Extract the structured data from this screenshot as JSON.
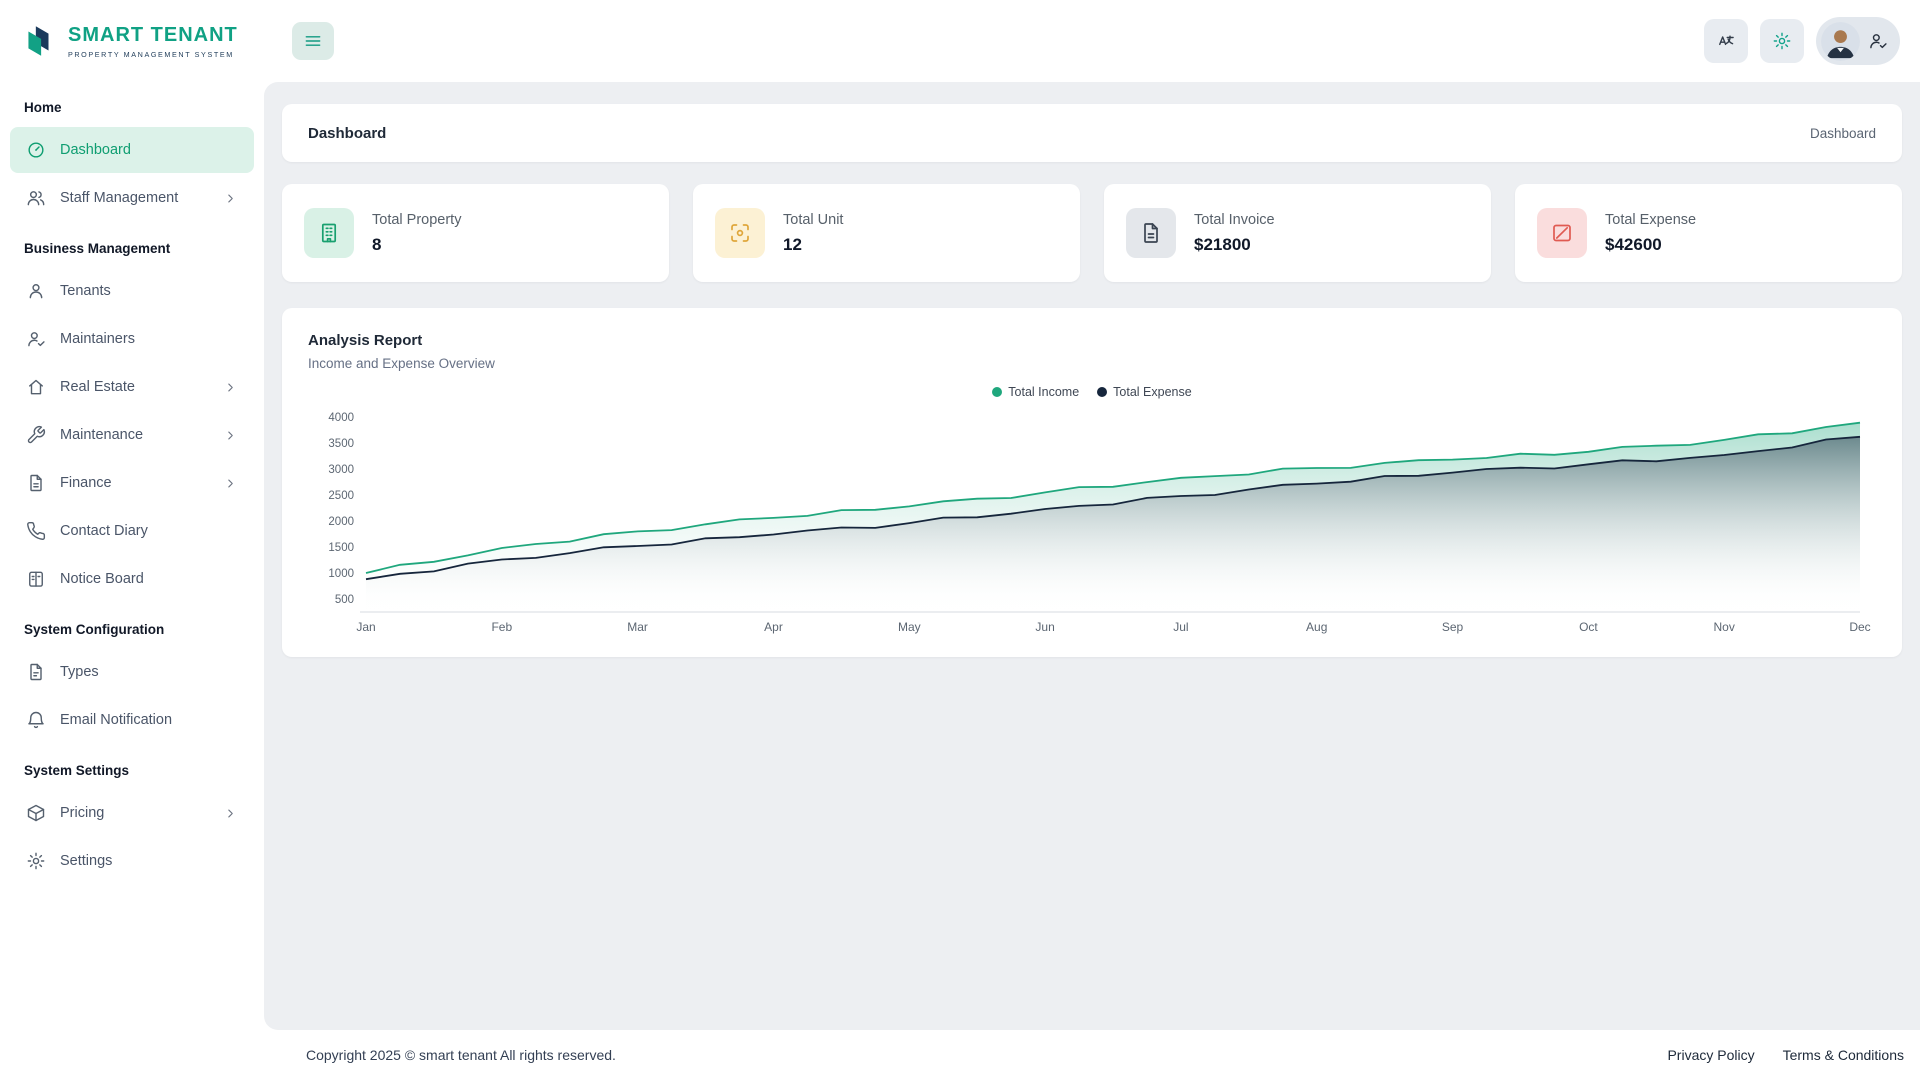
{
  "brand": {
    "name_primary": "SMART",
    "name_secondary": "TENANT",
    "tagline": "PROPERTY MANAGEMENT SYSTEM"
  },
  "sidebar": {
    "sections": [
      {
        "title": "Home",
        "items": [
          {
            "id": "dashboard",
            "label": "Dashboard",
            "icon": "dashboard-icon",
            "active": true,
            "chevron": false
          },
          {
            "id": "staff-management",
            "label": "Staff Management",
            "icon": "users-icon",
            "active": false,
            "chevron": true
          }
        ]
      },
      {
        "title": "Business Management",
        "items": [
          {
            "id": "tenants",
            "label": "Tenants",
            "icon": "user-icon",
            "active": false,
            "chevron": false
          },
          {
            "id": "maintainers",
            "label": "Maintainers",
            "icon": "user-check-icon",
            "active": false,
            "chevron": false
          },
          {
            "id": "real-estate",
            "label": "Real Estate",
            "icon": "home-icon",
            "active": false,
            "chevron": true
          },
          {
            "id": "maintenance",
            "label": "Maintenance",
            "icon": "wrench-icon",
            "active": false,
            "chevron": true
          },
          {
            "id": "finance",
            "label": "Finance",
            "icon": "file-text-icon",
            "active": false,
            "chevron": true
          },
          {
            "id": "contact-diary",
            "label": "Contact Diary",
            "icon": "phone-icon",
            "active": false,
            "chevron": false
          },
          {
            "id": "notice-board",
            "label": "Notice Board",
            "icon": "board-icon",
            "active": false,
            "chevron": false
          }
        ]
      },
      {
        "title": "System Configuration",
        "items": [
          {
            "id": "types",
            "label": "Types",
            "icon": "file-icon",
            "active": false,
            "chevron": false
          },
          {
            "id": "email-notification",
            "label": "Email Notification",
            "icon": "bell-icon",
            "active": false,
            "chevron": false
          }
        ]
      },
      {
        "title": "System Settings",
        "items": [
          {
            "id": "pricing",
            "label": "Pricing",
            "icon": "package-icon",
            "active": false,
            "chevron": true
          },
          {
            "id": "settings",
            "label": "Settings",
            "icon": "gear-icon",
            "active": false,
            "chevron": false
          }
        ]
      }
    ]
  },
  "breadcrumb": {
    "title": "Dashboard",
    "current": "Dashboard"
  },
  "stats": [
    {
      "id": "total-property",
      "label": "Total Property",
      "value": "8",
      "icon": "building-icon",
      "chip_bg": "#d9f1e6",
      "chip_color": "#18a06f"
    },
    {
      "id": "total-unit",
      "label": "Total Unit",
      "value": "12",
      "icon": "unit-icon",
      "chip_bg": "#fcf1d4",
      "chip_color": "#dfa63a"
    },
    {
      "id": "total-invoice",
      "label": "Total Invoice",
      "value": "$21800",
      "icon": "invoice-icon",
      "chip_bg": "#e4e7eb",
      "chip_color": "#3a4452"
    },
    {
      "id": "total-expense",
      "label": "Total Expense",
      "value": "$42600",
      "icon": "expense-icon",
      "chip_bg": "#fadddd",
      "chip_color": "#e05a52"
    }
  ],
  "chart_data": {
    "type": "area",
    "title": "Analysis Report",
    "subtitle": "Income and Expense Overview",
    "categories": [
      "Jan",
      "Feb",
      "Mar",
      "Apr",
      "May",
      "Jun",
      "Jul",
      "Aug",
      "Sep",
      "Oct",
      "Nov",
      "Dec"
    ],
    "series": [
      {
        "name": "Total Income",
        "color": "#1fa77d",
        "fill_top": "rgba(31,167,125,0.38)",
        "values": [
          1000,
          1480,
          1800,
          2060,
          2280,
          2550,
          2830,
          3020,
          3180,
          3330,
          3560,
          3890
        ]
      },
      {
        "name": "Total Expense",
        "color": "#16263c",
        "fill_top": "rgba(35,50,72,0.50)",
        "values": [
          880,
          1260,
          1520,
          1740,
          1960,
          2230,
          2480,
          2720,
          2930,
          3090,
          3270,
          3620
        ]
      }
    ],
    "yticks": [
      500,
      1000,
      1500,
      2000,
      2500,
      3000,
      3500,
      4000
    ],
    "ylim": [
      500,
      4000
    ],
    "grid": false,
    "legend_position": "top"
  },
  "footer": {
    "copyright": "Copyright 2025 © smart tenant All rights reserved.",
    "links": [
      "Privacy Policy",
      "Terms & Conditions"
    ]
  },
  "colors": {
    "accent": "#12a185",
    "active_item_bg": "#dcf2e9",
    "active_item_text": "#0f9e71",
    "content_bg": "#edeff2",
    "income": "#1fa77d",
    "expense": "#16263c"
  }
}
